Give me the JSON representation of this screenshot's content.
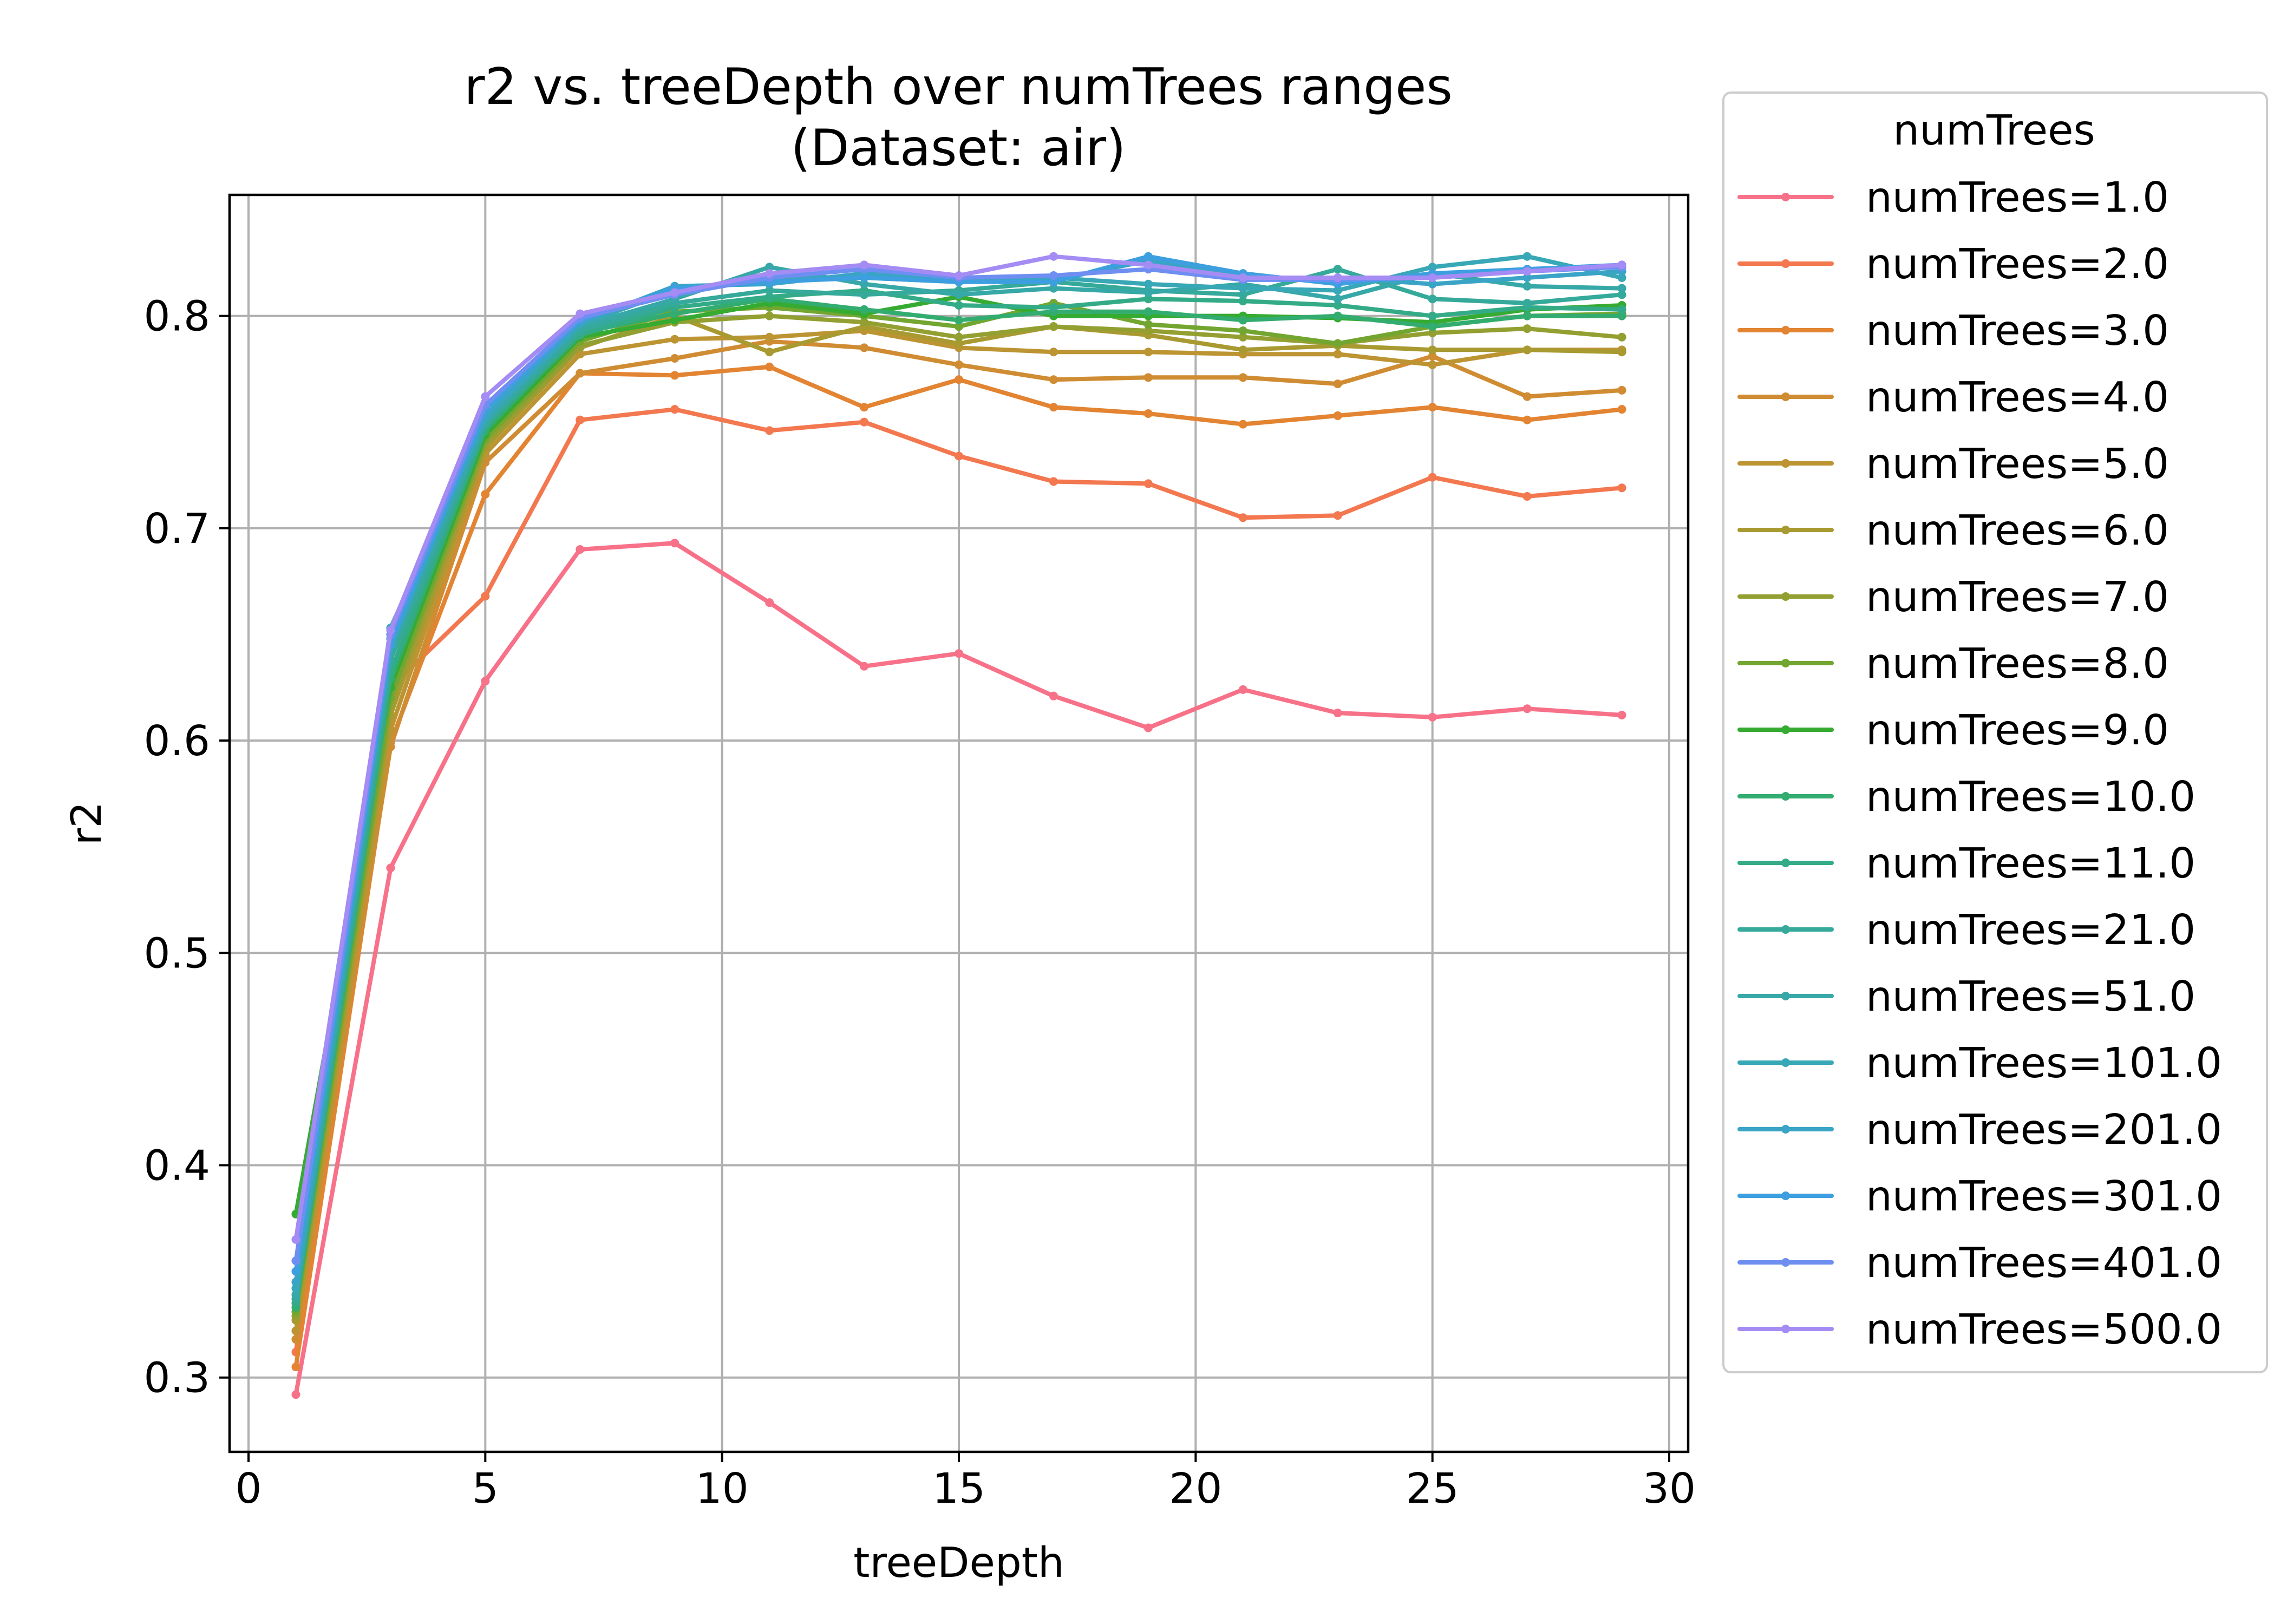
{
  "chart_data": {
    "type": "line",
    "title": "r2 vs. treeDepth over numTrees ranges",
    "subtitle": "(Dataset: air)",
    "xlabel": "treeDepth",
    "ylabel": "r2",
    "xlim": [
      -0.4,
      30.4
    ],
    "ylim": [
      0.265,
      0.857
    ],
    "xticks": [
      0,
      5,
      10,
      15,
      20,
      25,
      30
    ],
    "yticks": [
      0.3,
      0.4,
      0.5,
      0.6,
      0.7,
      0.8
    ],
    "xtick_labels": [
      "0",
      "5",
      "10",
      "15",
      "20",
      "25",
      "30"
    ],
    "ytick_labels": [
      "0.3",
      "0.4",
      "0.5",
      "0.6",
      "0.7",
      "0.8"
    ],
    "grid": true,
    "legend_title": "numTrees",
    "legend_position": "outside-right",
    "x": [
      1,
      3,
      5,
      7,
      9,
      11,
      13,
      15,
      17,
      19,
      21,
      23,
      25,
      27,
      29
    ],
    "series": [
      {
        "name": "numTrees=1.0",
        "color": "#f77189",
        "values": [
          0.292,
          0.54,
          0.628,
          0.69,
          0.693,
          0.665,
          0.635,
          0.641,
          0.621,
          0.606,
          0.624,
          0.613,
          0.611,
          0.615,
          0.612
        ]
      },
      {
        "name": "numTrees=2.0",
        "color": "#f3774f",
        "values": [
          0.312,
          0.625,
          0.668,
          0.751,
          0.756,
          0.746,
          0.75,
          0.734,
          0.722,
          0.721,
          0.705,
          0.706,
          0.724,
          0.715,
          0.719
        ]
      },
      {
        "name": "numTrees=3.0",
        "color": "#e38432",
        "values": [
          0.305,
          0.599,
          0.716,
          0.773,
          0.772,
          0.776,
          0.757,
          0.77,
          0.757,
          0.754,
          0.749,
          0.753,
          0.757,
          0.751,
          0.756
        ]
      },
      {
        "name": "numTrees=4.0",
        "color": "#d08c33",
        "values": [
          0.318,
          0.597,
          0.731,
          0.773,
          0.78,
          0.788,
          0.785,
          0.777,
          0.77,
          0.771,
          0.771,
          0.768,
          0.781,
          0.762,
          0.765
        ]
      },
      {
        "name": "numTrees=5.0",
        "color": "#bc9432",
        "values": [
          0.322,
          0.605,
          0.735,
          0.782,
          0.789,
          0.79,
          0.793,
          0.785,
          0.783,
          0.783,
          0.782,
          0.782,
          0.777,
          0.784,
          0.784
        ]
      },
      {
        "name": "numTrees=6.0",
        "color": "#a89a31",
        "values": [
          0.327,
          0.612,
          0.738,
          0.785,
          0.8,
          0.783,
          0.795,
          0.787,
          0.795,
          0.791,
          0.784,
          0.786,
          0.784,
          0.784,
          0.783
        ]
      },
      {
        "name": "numTrees=7.0",
        "color": "#93a031",
        "values": [
          0.329,
          0.617,
          0.74,
          0.786,
          0.797,
          0.8,
          0.797,
          0.79,
          0.795,
          0.793,
          0.79,
          0.787,
          0.792,
          0.794,
          0.79
        ]
      },
      {
        "name": "numTrees=8.0",
        "color": "#73a630",
        "values": [
          0.331,
          0.62,
          0.742,
          0.788,
          0.802,
          0.804,
          0.8,
          0.795,
          0.806,
          0.796,
          0.793,
          0.787,
          0.795,
          0.8,
          0.801
        ]
      },
      {
        "name": "numTrees=9.0",
        "color": "#35ab31",
        "values": [
          0.377,
          0.625,
          0.744,
          0.79,
          0.798,
          0.806,
          0.801,
          0.809,
          0.8,
          0.8,
          0.8,
          0.799,
          0.797,
          0.803,
          0.805
        ]
      },
      {
        "name": "numTrees=10.0",
        "color": "#33ac70",
        "values": [
          0.333,
          0.629,
          0.746,
          0.792,
          0.801,
          0.808,
          0.803,
          0.798,
          0.802,
          0.802,
          0.798,
          0.8,
          0.795,
          0.8,
          0.8
        ]
      },
      {
        "name": "numTrees=11.0",
        "color": "#34ab87",
        "values": [
          0.335,
          0.632,
          0.748,
          0.791,
          0.804,
          0.809,
          0.812,
          0.805,
          0.804,
          0.808,
          0.807,
          0.805,
          0.8,
          0.804,
          0.803
        ]
      },
      {
        "name": "numTrees=21.0",
        "color": "#35a99a",
        "values": [
          0.337,
          0.638,
          0.749,
          0.793,
          0.806,
          0.812,
          0.81,
          0.812,
          0.816,
          0.812,
          0.81,
          0.822,
          0.808,
          0.806,
          0.81
        ]
      },
      {
        "name": "numTrees=51.0",
        "color": "#37a8a8",
        "values": [
          0.339,
          0.642,
          0.75,
          0.795,
          0.808,
          0.823,
          0.815,
          0.81,
          0.813,
          0.811,
          0.815,
          0.808,
          0.82,
          0.814,
          0.813
        ]
      },
      {
        "name": "numTrees=101.0",
        "color": "#38a7b6",
        "values": [
          0.342,
          0.653,
          0.752,
          0.796,
          0.812,
          0.818,
          0.818,
          0.816,
          0.818,
          0.815,
          0.813,
          0.812,
          0.823,
          0.828,
          0.818
        ]
      },
      {
        "name": "numTrees=201.0",
        "color": "#3aa4c6",
        "values": [
          0.345,
          0.648,
          0.753,
          0.797,
          0.814,
          0.815,
          0.82,
          0.817,
          0.817,
          0.826,
          0.818,
          0.818,
          0.815,
          0.818,
          0.821
        ]
      },
      {
        "name": "numTrees=301.0",
        "color": "#3d9fdf",
        "values": [
          0.35,
          0.645,
          0.756,
          0.798,
          0.813,
          0.816,
          0.818,
          0.816,
          0.816,
          0.828,
          0.82,
          0.815,
          0.82,
          0.822,
          0.824
        ]
      },
      {
        "name": "numTrees=401.0",
        "color": "#6e8ff1",
        "values": [
          0.355,
          0.65,
          0.758,
          0.799,
          0.81,
          0.818,
          0.822,
          0.818,
          0.819,
          0.822,
          0.817,
          0.817,
          0.818,
          0.821,
          0.823
        ]
      },
      {
        "name": "numTrees=500.0",
        "color": "#a48cf4",
        "values": [
          0.365,
          0.652,
          0.762,
          0.801,
          0.811,
          0.82,
          0.824,
          0.819,
          0.828,
          0.824,
          0.818,
          0.818,
          0.818,
          0.821,
          0.824
        ]
      }
    ]
  }
}
